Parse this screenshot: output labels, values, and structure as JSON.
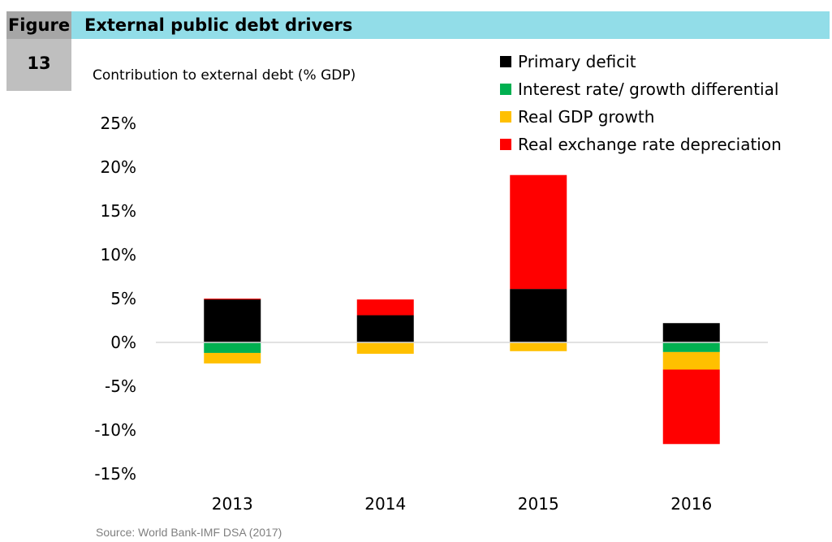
{
  "figure": {
    "label": "Figure",
    "number": "13",
    "title": "External public debt drivers"
  },
  "source": "Source: World Bank-IMF DSA (2017)",
  "chart_data": {
    "type": "bar",
    "stacked": true,
    "title": "External public debt drivers",
    "ylabel": "Contribution to external debt (% GDP)",
    "xlabel": "",
    "categories": [
      "2013",
      "2014",
      "2015",
      "2016"
    ],
    "ylim": [
      -15,
      25
    ],
    "yticks": [
      25,
      20,
      15,
      10,
      5,
      0,
      -5,
      -10,
      -15
    ],
    "ytick_labels": [
      "25%",
      "20%",
      "15%",
      "10%",
      "5%",
      "0%",
      "-5%",
      "-10%",
      "-15%"
    ],
    "grid": false,
    "legend_position": "top-right",
    "series": [
      {
        "name": "Primary deficit",
        "color": "#000000",
        "values": [
          4.9,
          3.1,
          6.1,
          2.2
        ]
      },
      {
        "name": "Interest rate/ growth differential",
        "color": "#00b050",
        "values": [
          -1.2,
          0.0,
          0.0,
          -1.1
        ]
      },
      {
        "name": "Real GDP growth",
        "color": "#ffc000",
        "values": [
          -1.2,
          -1.3,
          -1.0,
          -2.0
        ]
      },
      {
        "name": "Real exchange rate depreciation",
        "color": "#ff0000",
        "values": [
          0.1,
          1.8,
          13.0,
          -8.5
        ]
      }
    ]
  }
}
